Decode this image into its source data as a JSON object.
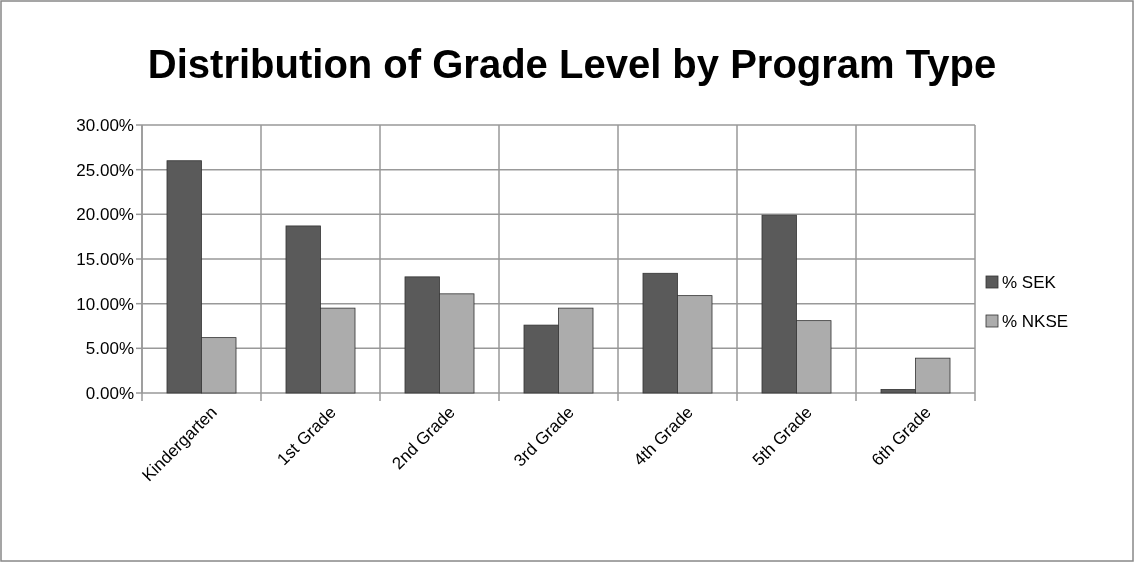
{
  "chart_data": {
    "type": "bar",
    "title": "Distribution of Grade Level by Program Type",
    "categories": [
      "Kindergarten",
      "1st Grade",
      "2nd Grade",
      "3rd Grade",
      "4th Grade",
      "5th Grade",
      "6th Grade"
    ],
    "series": [
      {
        "name": "% SEK",
        "color": "#5a5a5a",
        "values": [
          26.0,
          18.7,
          13.0,
          7.6,
          13.4,
          19.9,
          0.4
        ]
      },
      {
        "name": "% NKSE",
        "color": "#acacac",
        "values": [
          6.2,
          9.5,
          11.1,
          9.5,
          10.9,
          8.1,
          3.9
        ]
      }
    ],
    "ylim": [
      0,
      30
    ],
    "yticks": [
      {
        "value": 0,
        "label": "0.00%"
      },
      {
        "value": 5,
        "label": "5.00%"
      },
      {
        "value": 10,
        "label": "10.00%"
      },
      {
        "value": 15,
        "label": "15.00%"
      },
      {
        "value": 20,
        "label": "20.00%"
      },
      {
        "value": 25,
        "label": "25.00%"
      },
      {
        "value": 30,
        "label": "30.00%"
      }
    ],
    "grid": true,
    "legend": "right"
  }
}
